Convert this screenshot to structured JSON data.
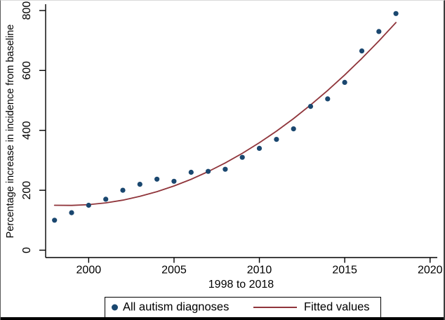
{
  "figure": {
    "y_axis_title": "Percentage increase in incidence from baseline",
    "x_axis_title": "1998 to 2018"
  },
  "colors": {
    "marker": "#1a476f",
    "fit_line": "#90353b",
    "axis": "#000000",
    "background": "#ffffff"
  },
  "chart_data": {
    "type": "scatter",
    "title": "",
    "xlabel": "1998 to 2018",
    "ylabel": "Percentage increase in incidence from baseline",
    "xlim": [
      1997.5,
      2020.4
    ],
    "ylim": [
      0,
      800
    ],
    "x_ticks": [
      2000,
      2005,
      2010,
      2015,
      2020
    ],
    "y_ticks": [
      0,
      200,
      400,
      600,
      800
    ],
    "grid": false,
    "legend_position": "bottom-center",
    "series": [
      {
        "name": "All autism diagnoses",
        "type": "scatter",
        "x": [
          1998,
          1999,
          2000,
          2001,
          2002,
          2003,
          2004,
          2005,
          2006,
          2007,
          2008,
          2009,
          2010,
          2011,
          2012,
          2013,
          2014,
          2015,
          2016,
          2017,
          2018
        ],
        "y": [
          100,
          125,
          150,
          170,
          200,
          220,
          237,
          230,
          260,
          263,
          270,
          310,
          340,
          370,
          405,
          480,
          505,
          560,
          665,
          730,
          790
        ]
      },
      {
        "name": "Fitted values",
        "type": "line",
        "x": [
          1998,
          1999,
          2000,
          2001,
          2002,
          2003,
          2004,
          2005,
          2006,
          2007,
          2008,
          2009,
          2010,
          2011,
          2012,
          2013,
          2014,
          2015,
          2016,
          2017,
          2018
        ],
        "y": [
          150.0,
          149.4,
          152.0,
          158.0,
          167.1,
          179.6,
          195.3,
          214.4,
          236.7,
          262.3,
          291.1,
          323.2,
          358.7,
          397.4,
          439.3,
          484.6,
          533.2,
          585.0,
          640.0,
          698.4,
          760.0
        ]
      }
    ]
  }
}
